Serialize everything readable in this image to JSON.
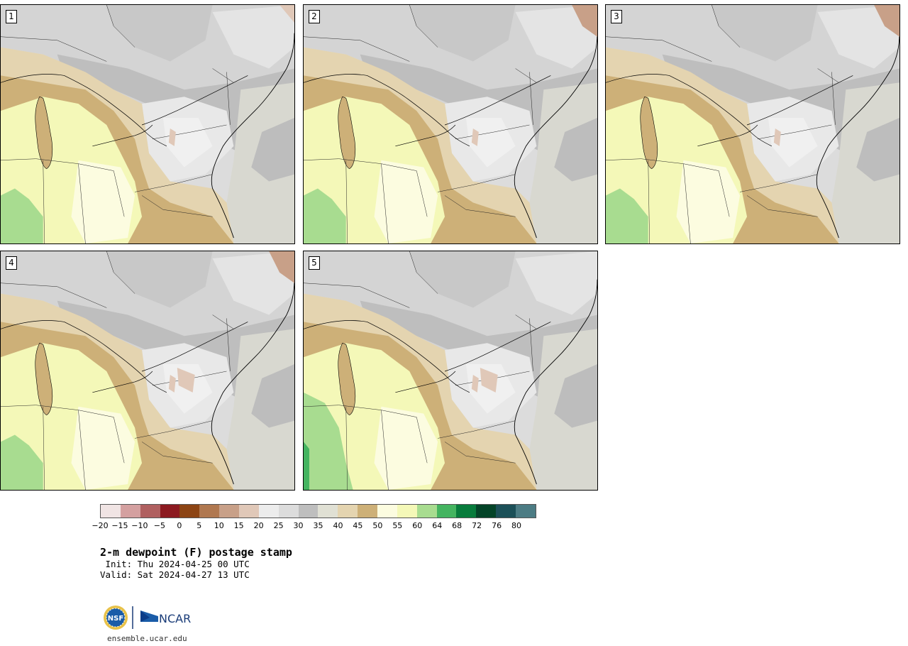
{
  "panels": [
    {
      "label": "1",
      "variant": 0
    },
    {
      "label": "2",
      "variant": 1
    },
    {
      "label": "3",
      "variant": 2
    },
    {
      "label": "4",
      "variant": 3
    },
    {
      "label": "5",
      "variant": 4
    }
  ],
  "colorbar": {
    "colors": [
      "#f0e4e4",
      "#d4a0a0",
      "#b06060",
      "#8c1a20",
      "#8c4414",
      "#b07850",
      "#c8a088",
      "#e0c8b8",
      "#ececec",
      "#dcdcdc",
      "#bebebe",
      "#e0e0d4",
      "#e4d4b0",
      "#cdb078",
      "#fcfce0",
      "#f4f8b8",
      "#a8dc90",
      "#44b460",
      "#087c3c",
      "#044428",
      "#1c5058",
      "#4c7c84"
    ],
    "tick_labels": [
      "−20",
      "−15",
      "−10",
      "−5",
      "0",
      "5",
      "10",
      "15",
      "20",
      "25",
      "30",
      "35",
      "40",
      "45",
      "50",
      "55",
      "60",
      "64",
      "68",
      "72",
      "76",
      "80"
    ]
  },
  "title": "2-m dewpoint (F) postage stamp",
  "init_line": " Init: Thu 2024-04-25 00 UTC",
  "valid_line": "Valid: Sat 2024-04-27 13 UTC",
  "logo": {
    "org1": "NSF",
    "org2": "NCAR"
  },
  "website": "ensemble.ucar.edu"
}
